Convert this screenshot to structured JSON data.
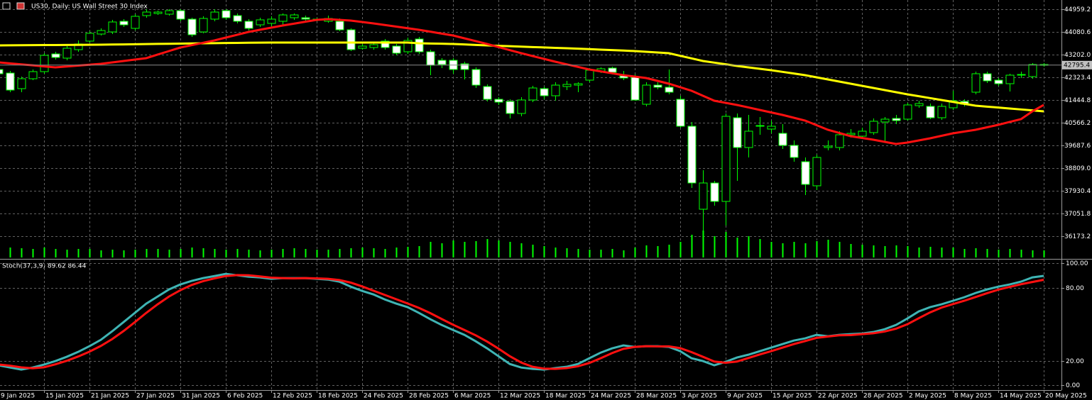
{
  "chart_data": [
    {
      "type": "candlestick",
      "title": "US30, Daily:  US Wall Street 30 Index",
      "categories": [
        "9 Jan 2025",
        null,
        null,
        null,
        "15 Jan 2025",
        null,
        null,
        null,
        "21 Jan 2025",
        null,
        null,
        null,
        "27 Jan 2025",
        null,
        null,
        null,
        "31 Jan 2025",
        null,
        null,
        null,
        "6 Feb 2025",
        null,
        null,
        null,
        "12 Feb 2025",
        null,
        null,
        null,
        "18 Feb 2025",
        null,
        null,
        null,
        "24 Feb 2025",
        null,
        null,
        null,
        "28 Feb 2025",
        null,
        null,
        null,
        "6 Mar 2025",
        null,
        null,
        null,
        "12 Mar 2025",
        null,
        null,
        null,
        "18 Mar 2025",
        null,
        null,
        null,
        "24 Mar 2025",
        null,
        null,
        null,
        "28 Mar 2025",
        null,
        null,
        null,
        "3 Apr 2025",
        null,
        null,
        null,
        "9 Apr 2025",
        null,
        null,
        null,
        "15 Apr 2025",
        null,
        null,
        null,
        "22 Apr 2025",
        null,
        null,
        null,
        "28 Apr 2025",
        null,
        null,
        null,
        "2 May 2025",
        null,
        null,
        null,
        "8 May 2025",
        null,
        null,
        null,
        "14 May 2025",
        null,
        null,
        null,
        "20 May 2025"
      ],
      "open": [
        42625,
        42488,
        41884,
        42268,
        42543,
        43229,
        43065,
        43394,
        43724,
        43998,
        44080,
        44492,
        44218,
        44712,
        44794,
        44767,
        44904,
        44575,
        44080,
        44575,
        44904,
        44712,
        44492,
        44355,
        44410,
        44492,
        44630,
        44630,
        44575,
        44492,
        44492,
        44163,
        43449,
        43476,
        43724,
        43531,
        43312,
        43806,
        43312,
        42982,
        42982,
        42845,
        42625,
        41966,
        41472,
        41390,
        40923,
        41445,
        41884,
        41609,
        41966,
        42021,
        42213,
        42570,
        42680,
        42378,
        42323,
        41280,
        42021,
        41939,
        41472,
        40429,
        37216,
        38232,
        37518,
        40758,
        39605,
        40456,
        40319,
        40154,
        39688,
        39056,
        38123,
        39605,
        39605,
        40099,
        40044,
        40182,
        40594,
        40731,
        40703,
        41225,
        41198,
        40758,
        41143,
        41390,
        41747,
        42461,
        42213,
        42076,
        42406,
        42351,
        42818
      ],
      "high": [
        42708,
        42570,
        42351,
        42625,
        43257,
        43312,
        43531,
        43751,
        44108,
        44218,
        44547,
        44575,
        44767,
        44959,
        44904,
        44959,
        44959,
        44630,
        44685,
        44959,
        44959,
        44794,
        44575,
        44630,
        44685,
        44794,
        44794,
        44712,
        44630,
        44712,
        44602,
        44218,
        43614,
        43669,
        43806,
        43614,
        43861,
        43888,
        43394,
        43065,
        43065,
        42927,
        42708,
        42049,
        41555,
        41472,
        41555,
        41994,
        41966,
        42131,
        42186,
        42131,
        42680,
        42708,
        42735,
        42570,
        42433,
        42131,
        42131,
        42625,
        41609,
        40594,
        38727,
        38315,
        40923,
        40923,
        40868,
        40786,
        40648,
        40511,
        39880,
        39221,
        39331,
        39880,
        40237,
        40319,
        40374,
        40731,
        40786,
        40868,
        41335,
        41417,
        41307,
        41307,
        41802,
        41472,
        42543,
        42543,
        42296,
        42461,
        42543,
        42872,
        42872
      ],
      "low": [
        42351,
        41747,
        41747,
        42213,
        42461,
        43010,
        42982,
        43312,
        43669,
        43943,
        43998,
        44273,
        44135,
        44630,
        44739,
        44712,
        44492,
        43888,
        44026,
        44492,
        44547,
        44410,
        44135,
        44273,
        44300,
        44355,
        44547,
        44520,
        44492,
        44437,
        44108,
        43339,
        43394,
        43394,
        43394,
        43174,
        43229,
        43229,
        42406,
        42680,
        42461,
        42241,
        41911,
        41390,
        41253,
        40731,
        40813,
        41362,
        41472,
        41417,
        41829,
        41747,
        42131,
        42488,
        42433,
        42213,
        41417,
        41198,
        41857,
        41664,
        40374,
        38040,
        36393,
        37354,
        36585,
        38315,
        39221,
        40099,
        40154,
        39550,
        39056,
        37766,
        37958,
        39495,
        39495,
        39990,
        39935,
        40099,
        39825,
        40511,
        40648,
        41143,
        40703,
        40676,
        41060,
        41198,
        41664,
        42104,
        41994,
        41774,
        42296,
        42268,
        42735
      ],
      "close": [
        42461,
        41829,
        42268,
        42543,
        43174,
        43092,
        43449,
        43614,
        44026,
        44135,
        44465,
        44355,
        44685,
        44849,
        44849,
        44904,
        44575,
        43971,
        44602,
        44849,
        44630,
        44492,
        44218,
        44547,
        44575,
        44739,
        44739,
        44575,
        44547,
        44602,
        44163,
        43394,
        43531,
        43586,
        43476,
        43257,
        43751,
        43312,
        42790,
        42818,
        42625,
        42625,
        42021,
        41472,
        41362,
        40923,
        41445,
        41911,
        41609,
        42021,
        42049,
        42076,
        42598,
        42653,
        42515,
        42296,
        41445,
        42021,
        41939,
        41747,
        40429,
        38232,
        38232,
        37518,
        40813,
        39605,
        40237,
        40429,
        40429,
        39688,
        39221,
        38177,
        39221,
        39660,
        40099,
        40154,
        40237,
        40621,
        40703,
        40648,
        41253,
        41307,
        40758,
        41198,
        41417,
        41280,
        42461,
        42186,
        42076,
        42406,
        42433,
        42818,
        42795.4
      ],
      "volume": [
        14,
        14,
        13,
        12,
        14,
        12,
        11,
        12,
        12,
        10,
        11,
        10,
        11,
        12,
        12,
        11,
        12,
        14,
        13,
        12,
        11,
        12,
        11,
        10,
        11,
        12,
        13,
        12,
        11,
        11,
        12,
        13,
        14,
        13,
        12,
        14,
        15,
        16,
        22,
        20,
        24,
        22,
        23,
        26,
        24,
        22,
        20,
        18,
        16,
        14,
        13,
        12,
        11,
        11,
        12,
        10,
        14,
        17,
        16,
        18,
        22,
        32,
        38,
        30,
        36,
        28,
        30,
        26,
        22,
        20,
        22,
        20,
        23,
        25,
        22,
        19,
        18,
        17,
        16,
        17,
        16,
        14,
        15,
        14,
        14,
        12,
        13,
        12,
        11,
        12,
        11,
        10,
        10
      ],
      "moving_averages": [
        {
          "color": "#ffff00",
          "values": [
            43559,
            43562,
            43565,
            43568,
            43571,
            43574,
            43577,
            43580,
            43583,
            43586,
            43592,
            43598,
            43604,
            43610,
            43616,
            43622,
            43628,
            43634,
            43640,
            43645,
            43650,
            43655,
            43660,
            43664,
            43667,
            43669,
            43669,
            43669,
            43669,
            43669,
            43669,
            43669,
            43669,
            43669,
            43669,
            43669,
            43669,
            43641,
            43632,
            43623,
            43614,
            43595,
            43577,
            43559,
            43543,
            43527,
            43511,
            43495,
            43479,
            43463,
            43449,
            43431,
            43413,
            43395,
            43377,
            43359,
            43339,
            43312,
            43285,
            43257,
            43156,
            43055,
            42955,
            42891,
            42827,
            42763,
            42708,
            42653,
            42598,
            42534,
            42470,
            42406,
            42323,
            42241,
            42159,
            42076,
            41994,
            41911,
            41829,
            41747,
            41664,
            41591,
            41518,
            41445,
            41372,
            41298,
            41225,
            41188,
            41152,
            41115,
            41079,
            41042,
            41005
          ]
        },
        {
          "color": "#ff1010",
          "values": [
            42900,
            42862,
            42823,
            42785,
            42746,
            42708,
            42742,
            42776,
            42811,
            42845,
            42900,
            42955,
            43010,
            43065,
            43202,
            43339,
            43476,
            43568,
            43660,
            43751,
            43861,
            43970,
            44080,
            44162,
            44245,
            44327,
            44400,
            44474,
            44547,
            44575,
            44548,
            44520,
            44465,
            44410,
            44348,
            44287,
            44225,
            44163,
            44090,
            44016,
            43943,
            43833,
            43724,
            43614,
            43495,
            43376,
            43257,
            43147,
            43037,
            42927,
            42826,
            42726,
            42625,
            42552,
            42479,
            42406,
            42351,
            42296,
            42186,
            42076,
            41939,
            41802,
            41610,
            41417,
            41335,
            41253,
            41157,
            41060,
            40964,
            40868,
            40758,
            40648,
            40470,
            40292,
            40168,
            40044,
            39976,
            39907,
            39825,
            39743,
            39797,
            39880,
            39962,
            40058,
            40154,
            40223,
            40292,
            40388,
            40484,
            40594,
            40703,
            41005,
            41253
          ]
        }
      ],
      "bull_color": "#00ff00",
      "bear_color": "#ffffff",
      "volume_color": "#00ff00",
      "ylim": [
        35294,
        45316
      ],
      "yticks": [
        36173.2,
        37051.8,
        37930.4,
        {
          "value": 38809,
          "label": "38809.0"
        },
        39687.6,
        40566.2,
        41444.8,
        42323.4,
        {
          "value": 43202,
          "label": "43202.0"
        },
        44080.6,
        44959.2
      ],
      "current_price": 42795.4,
      "grid": true
    },
    {
      "type": "line",
      "title": "Stoch(37,3,9) 89.62 86.44",
      "series": [
        {
          "color": "#3fb4b4",
          "values": [
            16.3,
            14.5,
            12.8,
            14.5,
            16.9,
            19.8,
            23.3,
            27.3,
            32,
            37.2,
            44.2,
            51.7,
            59.3,
            66.9,
            72.7,
            78.5,
            82.6,
            85.5,
            87.8,
            89.5,
            91.3,
            90.1,
            89,
            88.4,
            87.2,
            87.8,
            87.8,
            87.8,
            87.2,
            86.6,
            84.9,
            80.8,
            77.3,
            74.4,
            70.3,
            66.9,
            64,
            59.3,
            54.1,
            49.4,
            45.3,
            41.3,
            36,
            30.2,
            23.8,
            17.4,
            14.5,
            13.4,
            12.8,
            14,
            15.1,
            17.4,
            22.1,
            26.7,
            30.2,
            32.6,
            31.4,
            32,
            32,
            31.4,
            27.9,
            22.1,
            19.8,
            16.3,
            19.2,
            22.7,
            25,
            27.9,
            30.8,
            33.7,
            36.6,
            38.4,
            41.3,
            40.1,
            41.3,
            41.9,
            42.4,
            43.6,
            45.9,
            49.4,
            54.7,
            60.5,
            64,
            66.3,
            69.2,
            72.1,
            75.6,
            78.5,
            80.8,
            82.6,
            84.9,
            88.4,
            89.62
          ]
        },
        {
          "color": "#ff1010",
          "values": [
            17,
            16,
            14.6,
            13.9,
            14.7,
            17.1,
            20,
            23.5,
            27.5,
            32.2,
            37.8,
            44.4,
            51.7,
            59.3,
            66.3,
            72.7,
            77.9,
            82.2,
            85.3,
            87.6,
            89.5,
            90.3,
            90.1,
            89.2,
            88.2,
            87.8,
            87.6,
            87.8,
            87.6,
            87.2,
            86.2,
            84.1,
            81,
            77.5,
            74,
            70.5,
            67,
            63.4,
            59.1,
            54.3,
            49.6,
            45.3,
            40.9,
            35.8,
            30,
            23.8,
            18.6,
            15.1,
            13.6,
            13.4,
            14,
            15.5,
            18.2,
            22.1,
            26.3,
            29.8,
            31.4,
            32,
            31.8,
            31.8,
            30.4,
            27.1,
            23.3,
            19.4,
            18.4,
            19.4,
            22.3,
            25.2,
            27.9,
            30.8,
            33.7,
            36.2,
            38.8,
            39.9,
            40.9,
            41.1,
            41.9,
            42.6,
            44,
            46.3,
            50,
            54.9,
            59.7,
            63.6,
            66.5,
            69.2,
            72.3,
            75.4,
            78.3,
            80.6,
            82.8,
            84.6,
            86.44
          ]
        }
      ],
      "ylim": [
        -4,
        103
      ],
      "yticks": [
        {
          "value": 100,
          "label": "100.00"
        },
        {
          "value": 80,
          "label": "80.00"
        },
        {
          "value": 20,
          "label": "20.00"
        },
        {
          "value": 0,
          "label": "0.00"
        }
      ],
      "grid": true
    }
  ]
}
